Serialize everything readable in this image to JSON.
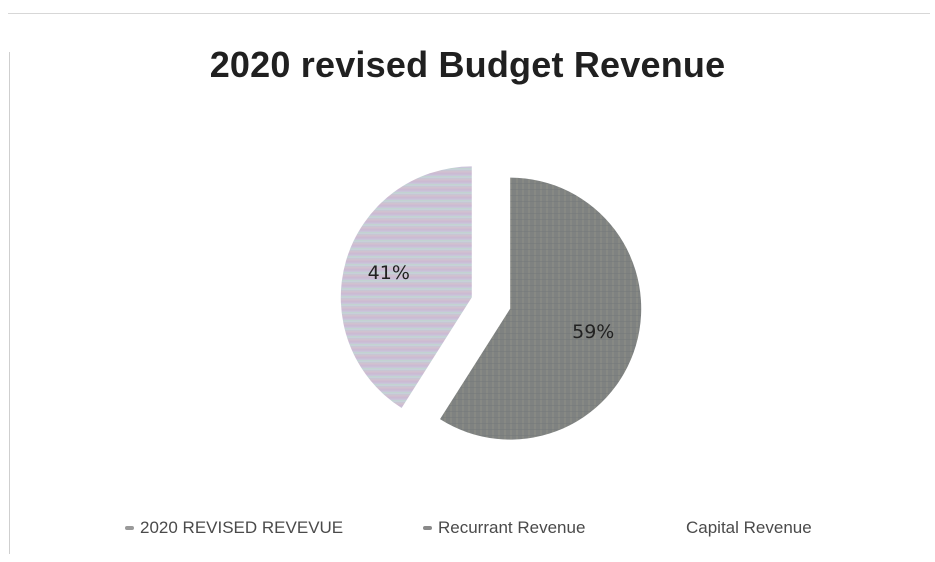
{
  "chart_data": {
    "type": "pie",
    "title": "2020 revised Budget Revenue",
    "slices": [
      {
        "label": "Recurrant Revenue",
        "value": 59,
        "data_label": "59%",
        "color": "#7f8281"
      },
      {
        "label": "Capital Revenue",
        "value": 41,
        "data_label": "41%",
        "color": "#c9c0d4"
      }
    ],
    "legend": {
      "placement": "bottom",
      "entries": [
        {
          "label": "2020 REVISED REVEVUE",
          "swatch_color": "#9a9a9a"
        },
        {
          "label": "Recurrant Revenue",
          "swatch_color": "#8a8a8a"
        },
        {
          "label": "Capital Revenue",
          "swatch_color": ""
        }
      ]
    }
  }
}
